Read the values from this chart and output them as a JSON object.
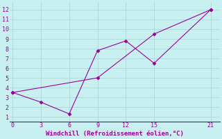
{
  "background_color": "#c8f0f0",
  "line1_x": [
    0,
    9,
    15,
    21
  ],
  "line1_y": [
    3.5,
    5.0,
    9.5,
    12.0
  ],
  "line2_x": [
    0,
    3,
    6,
    9,
    12,
    15,
    21
  ],
  "line2_y": [
    3.5,
    2.5,
    1.3,
    7.8,
    8.8,
    6.5,
    12.0
  ],
  "line_color": "#990099",
  "marker": "D",
  "marker_size": 2.5,
  "line_width": 0.8,
  "xlabel": "Windchill (Refroidissement éolien,°C)",
  "xlabel_color": "#990099",
  "xlabel_fontsize": 6.5,
  "xticks": [
    0,
    3,
    6,
    9,
    12,
    15,
    21
  ],
  "yticks": [
    1,
    2,
    3,
    4,
    5,
    6,
    7,
    8,
    9,
    10,
    11,
    12
  ],
  "xlim": [
    -0.3,
    22
  ],
  "ylim": [
    0.5,
    12.8
  ],
  "grid_color": "#b0d8d8",
  "tick_color": "#990099",
  "tick_fontsize": 6
}
